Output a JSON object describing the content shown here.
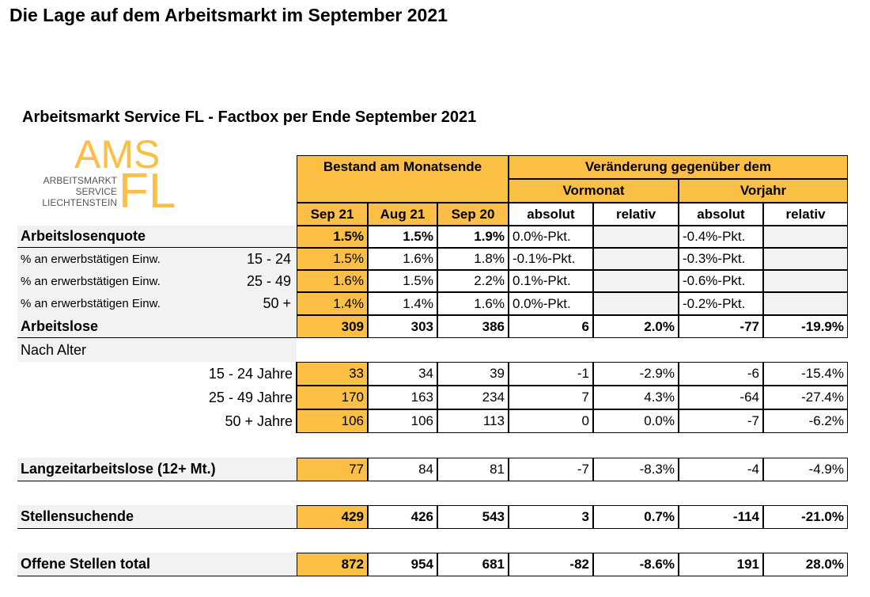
{
  "title": "Die Lage auf dem Arbeitsmarkt im September 2021",
  "factbox": {
    "title": "Arbeitsmarkt Service FL - Factbox per Ende September 2021",
    "logo": {
      "ams": "AMS",
      "fl": "FL",
      "lines": [
        "ARBEITSMARKT",
        "SERVICE",
        "LIECHTENSTEIN"
      ]
    },
    "header": {
      "group1": "Bestand am Monatsende",
      "group2": "Veränderung gegenüber dem",
      "sub": [
        "Vormonat",
        "Vorjahr"
      ],
      "columns": [
        "Sep 21",
        "Aug 21",
        "Sep 20",
        "absolut",
        "relativ",
        "absolut",
        "relativ"
      ]
    },
    "rows": [
      {
        "label": "Arbeitslosenquote",
        "cells": [
          "1.5%",
          "1.5%",
          "1.9%",
          "0.0%-Pkt.",
          null,
          "-0.4%-Pkt.",
          null
        ]
      },
      {
        "label": "% an erwerbstätigen Einw.",
        "sublabel": "15 - 24",
        "cells": [
          "1.5%",
          "1.6%",
          "1.8%",
          "-0.1%-Pkt.",
          null,
          "-0.3%-Pkt.",
          null
        ]
      },
      {
        "label": "% an erwerbstätigen Einw.",
        "sublabel": "25 - 49",
        "cells": [
          "1.6%",
          "1.5%",
          "2.2%",
          "0.1%-Pkt.",
          null,
          "-0.6%-Pkt.",
          null
        ]
      },
      {
        "label": "% an erwerbstätigen Einw.",
        "sublabel": "50 +",
        "cells": [
          "1.4%",
          "1.4%",
          "1.6%",
          "0.0%-Pkt.",
          null,
          "-0.2%-Pkt.",
          null
        ]
      },
      {
        "label": "Arbeitslose",
        "cells": [
          "309",
          "303",
          "386",
          "6",
          "2.0%",
          "-77",
          "-19.9%"
        ]
      },
      {
        "label": "Nach Alter"
      },
      {
        "label": "15 - 24 Jahre",
        "cells": [
          "33",
          "34",
          "39",
          "-1",
          "-2.9%",
          "-6",
          "-15.4%"
        ]
      },
      {
        "label": "25 - 49 Jahre",
        "cells": [
          "170",
          "163",
          "234",
          "7",
          "4.3%",
          "-64",
          "-27.4%"
        ]
      },
      {
        "label": "50 + Jahre",
        "cells": [
          "106",
          "106",
          "113",
          "0",
          "0.0%",
          "-7",
          "-6.2%"
        ]
      },
      {
        "label": "Langzeitarbeitslose (12+ Mt.)",
        "cells": [
          "77",
          "84",
          "81",
          "-7",
          "-8.3%",
          "-4",
          "-4.9%"
        ]
      },
      {
        "label": "Stellensuchende",
        "cells": [
          "429",
          "426",
          "543",
          "3",
          "0.7%",
          "-114",
          "-21.0%"
        ]
      },
      {
        "label": "Offene Stellen total",
        "cells": [
          "872",
          "954",
          "681",
          "-82",
          "-8.6%",
          "191",
          "28.0%"
        ]
      }
    ]
  }
}
